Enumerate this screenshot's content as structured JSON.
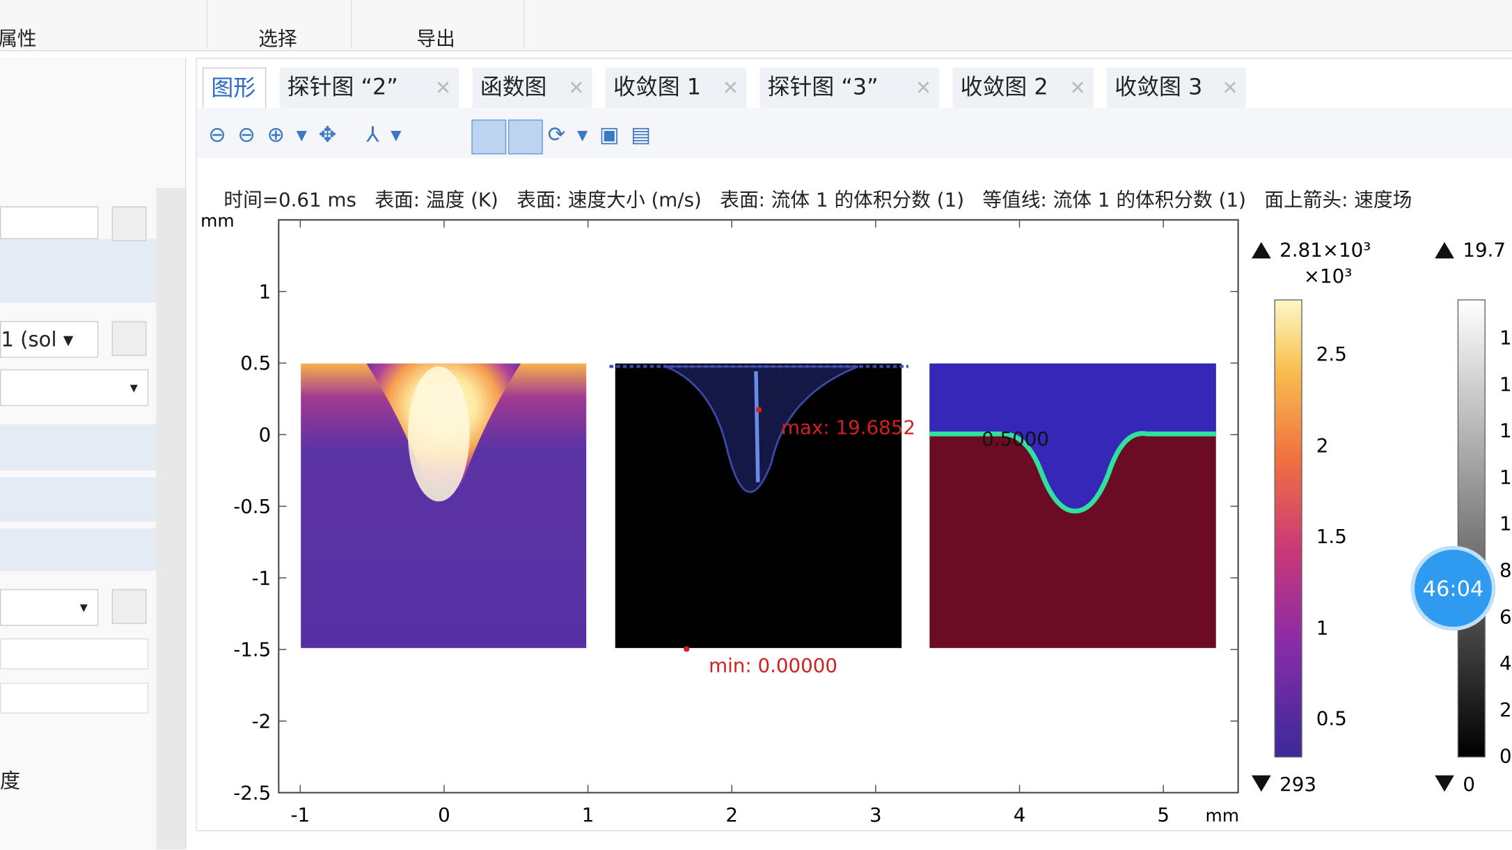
{
  "header_tabs": [
    "属性",
    "选择",
    "导出"
  ],
  "left_panel": {
    "dataset": "1 (sol",
    "label": "度"
  },
  "graphics": {
    "tabs": [
      "图形",
      "探针图 “2”",
      "函数图",
      "收敛图 1",
      "探针图 “3”",
      "收敛图 2",
      "收敛图 3"
    ],
    "title": "时间=0.61 ms   表面: 温度 (K)   表面: 速度大小 (m/s)   表面: 流体 1 的体积分数 (1)   等值线: 流体 1 的体积分数 (1)   面上箭头: 速度场",
    "plot": {
      "xlim": [
        -1.15,
        5.52
      ],
      "ylim": [
        -2.5,
        1.5
      ],
      "xticks": [
        -1,
        0,
        1,
        2,
        3,
        4,
        5
      ],
      "yticks": [
        1,
        0.5,
        0,
        -0.5,
        -1,
        -1.5,
        -2,
        -2.5
      ],
      "x_unit": "mm",
      "y_unit": "mm",
      "annotations": [
        "max: 19.6852",
        "min: 0.00000",
        "0.5000"
      ]
    },
    "colorbar_1": {
      "max": "2.81×10³",
      "multiplier": "×10³",
      "ticks": [
        2.5,
        2,
        1.5,
        1,
        0.5
      ],
      "min": "293"
    },
    "colorbar_2": {
      "max": "19.7",
      "ticks": [
        "1",
        "1",
        "1",
        "1",
        "1",
        "8",
        "6",
        "4",
        "2",
        "0"
      ],
      "min": "0"
    }
  },
  "timer": "46:04"
}
